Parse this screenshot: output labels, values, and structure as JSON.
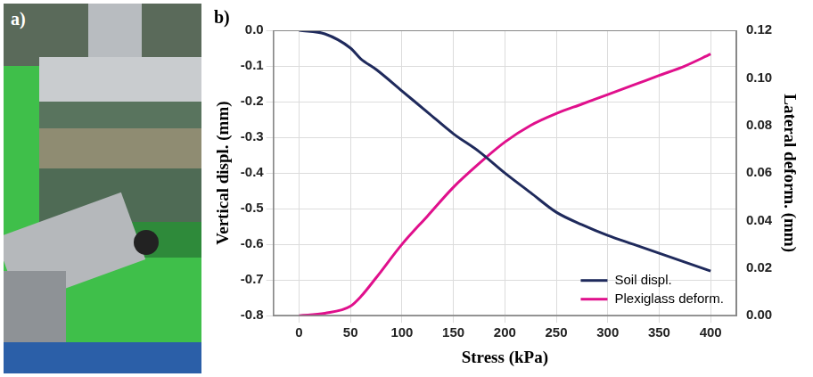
{
  "photo_panel": {
    "label": "a)"
  },
  "chart_data": {
    "type": "line",
    "panel_label": "b)",
    "xlabel": "Stress (kPa)",
    "ylabel": "Vertical displ. (mm)",
    "y2label": "Lateral deform. (mm)",
    "x": [
      0,
      25,
      50,
      60,
      75,
      100,
      125,
      150,
      175,
      200,
      225,
      250,
      275,
      300,
      325,
      350,
      375,
      400
    ],
    "series": [
      {
        "name": "Soil displ.",
        "color": "#1f2a5c",
        "axis": "y",
        "line_style": "solid",
        "marker": "none",
        "values": [
          0,
          -0.01,
          -0.05,
          -0.08,
          -0.11,
          -0.17,
          -0.23,
          -0.29,
          -0.34,
          -0.4,
          -0.455,
          -0.51,
          -0.545,
          -0.575,
          -0.6,
          -0.625,
          -0.65,
          -0.675
        ]
      },
      {
        "name": "Plexiglass deform.",
        "color": "#e0108c",
        "axis": "y2",
        "line_style": "solid",
        "marker": "none",
        "values": [
          0,
          0.001,
          0.004,
          0.008,
          0.016,
          0.03,
          0.042,
          0.054,
          0.064,
          0.073,
          0.08,
          0.085,
          0.089,
          0.093,
          0.097,
          0.101,
          0.105,
          0.11
        ]
      }
    ],
    "xlim": [
      -25,
      425
    ],
    "xticks": [
      0,
      50,
      100,
      150,
      200,
      250,
      300,
      350,
      400
    ],
    "ylim": [
      -0.8,
      0
    ],
    "yticks": [
      {
        "value": -0.8,
        "label": "-0.8"
      },
      {
        "value": -0.7,
        "label": "-0.7"
      },
      {
        "value": -0.6,
        "label": "-0.6"
      },
      {
        "value": -0.5,
        "label": "-0.5"
      },
      {
        "value": -0.4,
        "label": "-0.4"
      },
      {
        "value": -0.3,
        "label": "-0.3"
      },
      {
        "value": -0.2,
        "label": "-0.2"
      },
      {
        "value": -0.1,
        "label": "-0.1"
      },
      {
        "value": 0,
        "label": "0.0"
      }
    ],
    "y2lim": [
      0,
      0.12
    ],
    "y2ticks": [
      {
        "value": 0,
        "label": "0.00"
      },
      {
        "value": 0.02,
        "label": "0.02"
      },
      {
        "value": 0.04,
        "label": "0.04"
      },
      {
        "value": 0.06,
        "label": "0.06"
      },
      {
        "value": 0.08,
        "label": "0.08"
      },
      {
        "value": 0.1,
        "label": "0.10"
      },
      {
        "value": 0.12,
        "label": "0.12"
      }
    ],
    "grid": true,
    "legend": "lower right"
  }
}
